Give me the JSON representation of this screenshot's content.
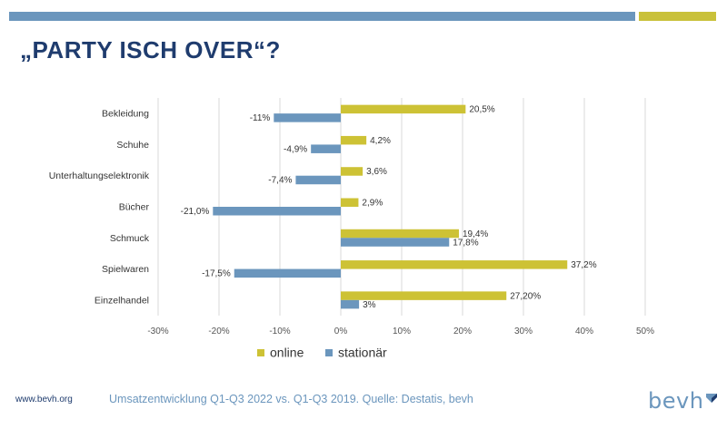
{
  "slide": {
    "title": "„PARTY ISCH OVER“?",
    "footer_url": "www.bevh.org",
    "footer_source": "Umsatzentwicklung Q1-Q3 2022 vs. Q1-Q3 2019. Quelle: Destatis, bevh",
    "logo_text": "bevh"
  },
  "colors": {
    "online": "#cdc235",
    "stationaer": "#6b96bd",
    "title": "#1f3c6e",
    "grid": "#d9d9d9"
  },
  "chart_data": {
    "type": "bar",
    "orientation": "horizontal",
    "categories": [
      "Bekleidung",
      "Schuhe",
      "Unterhaltungselektronik",
      "Bücher",
      "Schmuck",
      "Spielwaren",
      "Einzelhandel"
    ],
    "series": [
      {
        "name": "online",
        "values": [
          20.5,
          4.2,
          3.6,
          2.9,
          19.4,
          37.2,
          27.2
        ],
        "labels": [
          "20,5%",
          "4,2%",
          "3,6%",
          "2,9%",
          "19,4%",
          "37,2%",
          "27,20%"
        ]
      },
      {
        "name": "stationär",
        "values": [
          -11,
          -4.9,
          -7.4,
          -21.0,
          17.8,
          -17.5,
          3
        ],
        "labels": [
          "-11%",
          "-4,9%",
          "-7,4%",
          "-21,0%",
          "17,8%",
          "-17,5%",
          "3%"
        ]
      }
    ],
    "xlim": [
      -30,
      50
    ],
    "xticks": [
      -30,
      -20,
      -10,
      0,
      10,
      20,
      30,
      40,
      50
    ],
    "xtick_labels": [
      "-30%",
      "-20%",
      "-10%",
      "0%",
      "10%",
      "20%",
      "30%",
      "40%",
      "50%"
    ],
    "grid": true,
    "legend_position": "bottom"
  }
}
